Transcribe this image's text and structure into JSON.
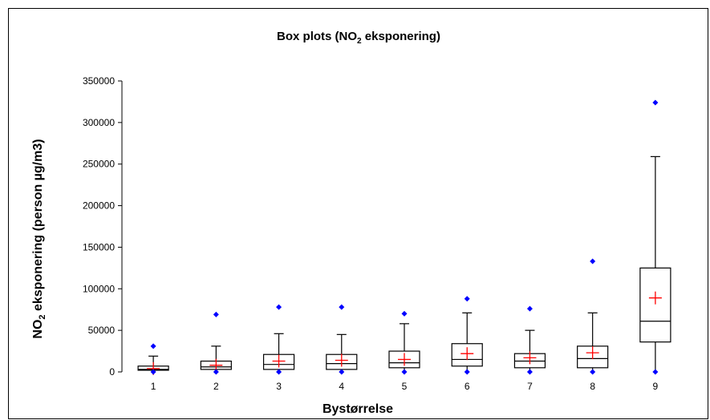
{
  "chart_data": {
    "type": "box",
    "title": {
      "prefix": "Box plots (NO",
      "sub": "2",
      "suffix": " eksponering)"
    },
    "xlabel": "Bystørrelse",
    "ylabel": {
      "prefix": "NO",
      "sub": "2",
      "suffix": " eksponering (person µg/m3)"
    },
    "ylim": [
      0,
      350000
    ],
    "yticks": [
      0,
      50000,
      100000,
      150000,
      200000,
      250000,
      300000,
      350000
    ],
    "ytick_labels": [
      "0",
      "50000",
      "100000",
      "150000",
      "200000",
      "250000",
      "300000",
      "350000"
    ],
    "grid": false,
    "legend": "none",
    "categories": [
      "1",
      "2",
      "3",
      "4",
      "5",
      "6",
      "7",
      "8",
      "9"
    ],
    "boxes": [
      {
        "category": "1",
        "min": 0,
        "q1": 2000,
        "median": 3000,
        "q3": 7000,
        "whisker_high": 19000,
        "mean": 4000,
        "outlier_max": 31000
      },
      {
        "category": "2",
        "min": 0,
        "q1": 3000,
        "median": 6000,
        "q3": 13000,
        "whisker_high": 31000,
        "mean": 8000,
        "outlier_max": 69000
      },
      {
        "category": "3",
        "min": 0,
        "q1": 3000,
        "median": 9000,
        "q3": 21000,
        "whisker_high": 46000,
        "mean": 13000,
        "outlier_max": 78000
      },
      {
        "category": "4",
        "min": 0,
        "q1": 3000,
        "median": 10000,
        "q3": 21000,
        "whisker_high": 45000,
        "mean": 14000,
        "outlier_max": 78000
      },
      {
        "category": "5",
        "min": 0,
        "q1": 5000,
        "median": 11000,
        "q3": 25000,
        "whisker_high": 58000,
        "mean": 15000,
        "outlier_max": 70000
      },
      {
        "category": "6",
        "min": 0,
        "q1": 7000,
        "median": 15000,
        "q3": 34000,
        "whisker_high": 71000,
        "mean": 22000,
        "outlier_max": 88000
      },
      {
        "category": "7",
        "min": 0,
        "q1": 5000,
        "median": 13000,
        "q3": 22000,
        "whisker_high": 50000,
        "mean": 17000,
        "outlier_max": 76000
      },
      {
        "category": "8",
        "min": 0,
        "q1": 5000,
        "median": 16000,
        "q3": 31000,
        "whisker_high": 71000,
        "mean": 23000,
        "outlier_max": 133000
      },
      {
        "category": "9",
        "min": 0,
        "q1": 36000,
        "median": 61000,
        "q3": 125000,
        "whisker_high": 259000,
        "mean": 89000,
        "outlier_max": 324000
      }
    ],
    "colors": {
      "box": "#000000",
      "mean_marker": "#ff0000",
      "outlier_marker": "#0000ff"
    }
  }
}
